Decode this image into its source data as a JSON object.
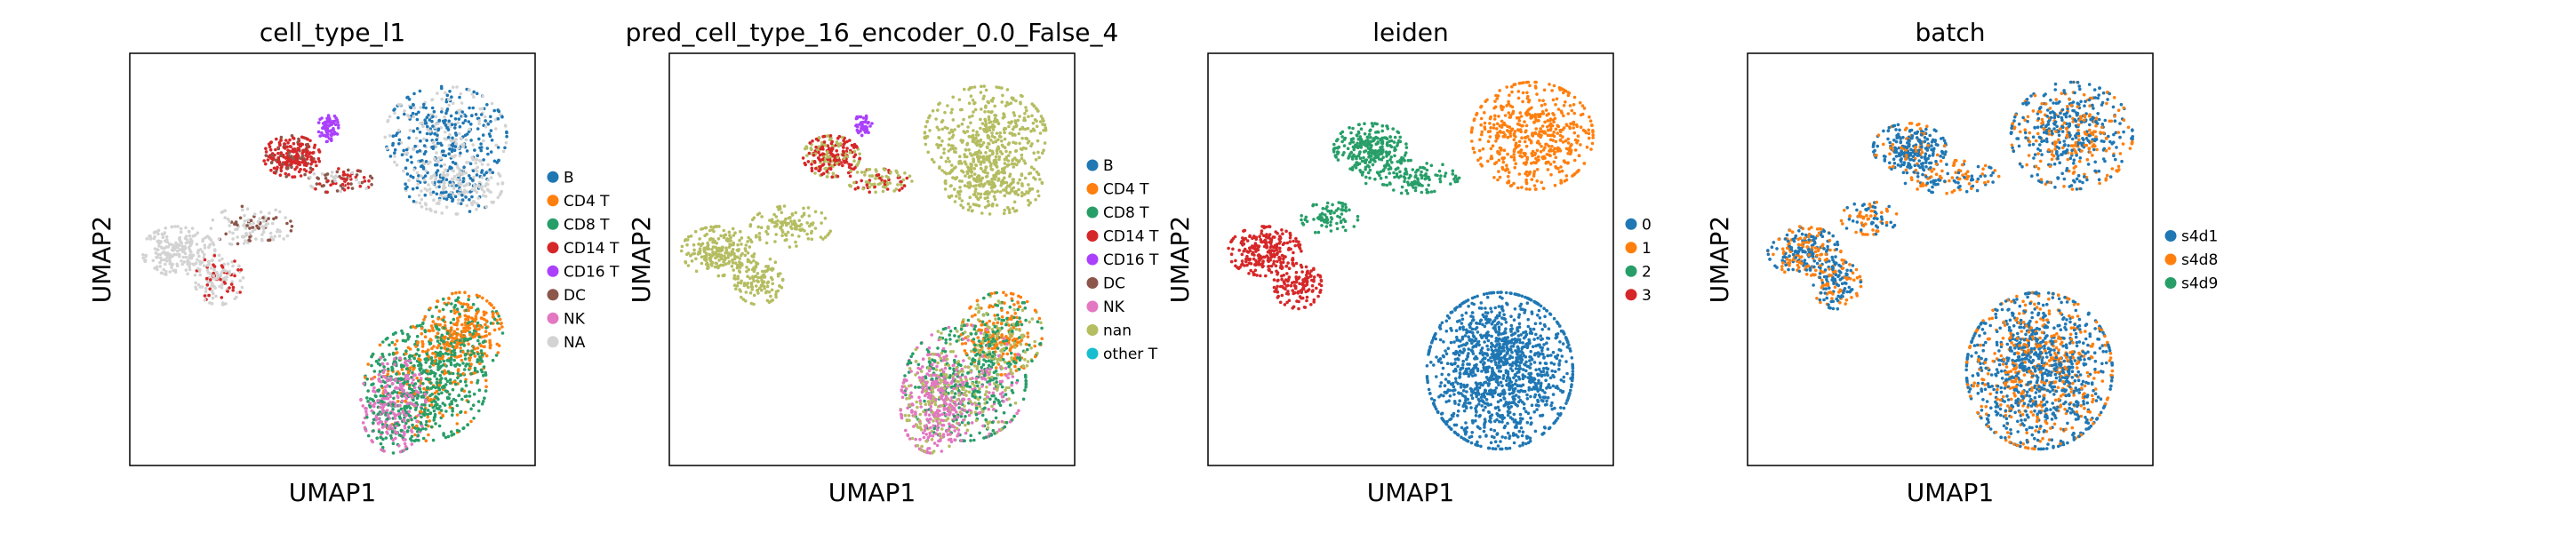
{
  "chart_data": [
    {
      "type": "scatter",
      "title": "cell_type_l1",
      "xlabel": "UMAP1",
      "ylabel": "UMAP2",
      "grid": false,
      "legend_placement": "right",
      "legend": [
        {
          "label": "B",
          "color": "#1f77b4"
        },
        {
          "label": "CD4 T",
          "color": "#ff7f0e"
        },
        {
          "label": "CD8 T",
          "color": "#279e68"
        },
        {
          "label": "CD14 T",
          "color": "#d62728"
        },
        {
          "label": "CD16 T",
          "color": "#aa40fc"
        },
        {
          "label": "DC",
          "color": "#8c564b"
        },
        {
          "label": "NK",
          "color": "#e377c2"
        },
        {
          "label": "NA",
          "color": "#d3d3d3"
        }
      ],
      "clusters": [
        {
          "cx": 0.78,
          "cy": 0.2,
          "rx": 0.15,
          "ry": 0.12,
          "colors": [
            "#1f77b4",
            "#1f77b4",
            "#d3d3d3"
          ],
          "n": 420
        },
        {
          "cx": 0.8,
          "cy": 0.32,
          "rx": 0.12,
          "ry": 0.07,
          "colors": [
            "#d3d3d3",
            "#d3d3d3",
            "#1f77b4"
          ],
          "n": 260
        },
        {
          "cx": 0.4,
          "cy": 0.25,
          "rx": 0.07,
          "ry": 0.05,
          "colors": [
            "#d62728",
            "#d62728",
            "#d62728",
            "#8c564b"
          ],
          "n": 230
        },
        {
          "cx": 0.49,
          "cy": 0.18,
          "rx": 0.025,
          "ry": 0.035,
          "colors": [
            "#aa40fc"
          ],
          "n": 70
        },
        {
          "cx": 0.52,
          "cy": 0.31,
          "rx": 0.08,
          "ry": 0.03,
          "colors": [
            "#d62728",
            "#8c564b",
            "#d3d3d3"
          ],
          "n": 90
        },
        {
          "cx": 0.3,
          "cy": 0.42,
          "rx": 0.1,
          "ry": 0.05,
          "colors": [
            "#d3d3d3",
            "#d3d3d3",
            "#8c564b"
          ],
          "n": 120
        },
        {
          "cx": 0.12,
          "cy": 0.48,
          "rx": 0.09,
          "ry": 0.06,
          "colors": [
            "#d3d3d3"
          ],
          "n": 220
        },
        {
          "cx": 0.22,
          "cy": 0.55,
          "rx": 0.06,
          "ry": 0.06,
          "colors": [
            "#d3d3d3",
            "#d3d3d3",
            "#d62728"
          ],
          "n": 130
        },
        {
          "cx": 0.82,
          "cy": 0.68,
          "rx": 0.1,
          "ry": 0.1,
          "colors": [
            "#ff7f0e",
            "#ff7f0e",
            "#279e68"
          ],
          "n": 380
        },
        {
          "cx": 0.73,
          "cy": 0.8,
          "rx": 0.15,
          "ry": 0.14,
          "colors": [
            "#279e68",
            "#279e68",
            "#279e68",
            "#ff7f0e"
          ],
          "n": 620
        },
        {
          "cx": 0.65,
          "cy": 0.85,
          "rx": 0.08,
          "ry": 0.12,
          "colors": [
            "#e377c2",
            "#e377c2",
            "#279e68"
          ],
          "n": 330
        }
      ]
    },
    {
      "type": "scatter",
      "title": "pred_cell_type_16_encoder_0.0_False_4",
      "xlabel": "UMAP1",
      "ylabel": "UMAP2",
      "grid": false,
      "legend_placement": "right",
      "legend": [
        {
          "label": "B",
          "color": "#1f77b4"
        },
        {
          "label": "CD4 T",
          "color": "#ff7f0e"
        },
        {
          "label": "CD8 T",
          "color": "#279e68"
        },
        {
          "label": "CD14 T",
          "color": "#d62728"
        },
        {
          "label": "CD16 T",
          "color": "#aa40fc"
        },
        {
          "label": "DC",
          "color": "#8c564b"
        },
        {
          "label": "NK",
          "color": "#e377c2"
        },
        {
          "label": "nan",
          "color": "#b5bd61"
        },
        {
          "label": "other T",
          "color": "#17becf"
        }
      ],
      "clusters": [
        {
          "cx": 0.78,
          "cy": 0.2,
          "rx": 0.15,
          "ry": 0.12,
          "colors": [
            "#b5bd61"
          ],
          "n": 420
        },
        {
          "cx": 0.8,
          "cy": 0.32,
          "rx": 0.12,
          "ry": 0.07,
          "colors": [
            "#b5bd61"
          ],
          "n": 260
        },
        {
          "cx": 0.4,
          "cy": 0.25,
          "rx": 0.07,
          "ry": 0.05,
          "colors": [
            "#d62728",
            "#d62728",
            "#b5bd61"
          ],
          "n": 230
        },
        {
          "cx": 0.48,
          "cy": 0.17,
          "rx": 0.02,
          "ry": 0.03,
          "colors": [
            "#aa40fc"
          ],
          "n": 50
        },
        {
          "cx": 0.52,
          "cy": 0.31,
          "rx": 0.08,
          "ry": 0.03,
          "colors": [
            "#b5bd61",
            "#d62728",
            "#b5bd61"
          ],
          "n": 90
        },
        {
          "cx": 0.3,
          "cy": 0.42,
          "rx": 0.1,
          "ry": 0.05,
          "colors": [
            "#b5bd61"
          ],
          "n": 120
        },
        {
          "cx": 0.12,
          "cy": 0.48,
          "rx": 0.09,
          "ry": 0.06,
          "colors": [
            "#b5bd61"
          ],
          "n": 220
        },
        {
          "cx": 0.22,
          "cy": 0.55,
          "rx": 0.06,
          "ry": 0.06,
          "colors": [
            "#b5bd61"
          ],
          "n": 130
        },
        {
          "cx": 0.82,
          "cy": 0.68,
          "rx": 0.1,
          "ry": 0.1,
          "colors": [
            "#ff7f0e",
            "#ff7f0e",
            "#b5bd61",
            "#279e68"
          ],
          "n": 380
        },
        {
          "cx": 0.73,
          "cy": 0.8,
          "rx": 0.15,
          "ry": 0.14,
          "colors": [
            "#279e68",
            "#b5bd61",
            "#279e68",
            "#e377c2"
          ],
          "n": 620
        },
        {
          "cx": 0.65,
          "cy": 0.85,
          "rx": 0.08,
          "ry": 0.12,
          "colors": [
            "#e377c2",
            "#e377c2",
            "#b5bd61"
          ],
          "n": 330
        }
      ]
    },
    {
      "type": "scatter",
      "title": "leiden",
      "xlabel": "UMAP1",
      "ylabel": "UMAP2",
      "grid": false,
      "legend_placement": "right",
      "legend": [
        {
          "label": "0",
          "color": "#1f77b4"
        },
        {
          "label": "1",
          "color": "#ff7f0e"
        },
        {
          "label": "2",
          "color": "#279e68"
        },
        {
          "label": "3",
          "color": "#d62728"
        }
      ],
      "clusters": [
        {
          "cx": 0.8,
          "cy": 0.2,
          "rx": 0.15,
          "ry": 0.13,
          "colors": [
            "#ff7f0e"
          ],
          "n": 520
        },
        {
          "cx": 0.4,
          "cy": 0.23,
          "rx": 0.09,
          "ry": 0.06,
          "colors": [
            "#279e68"
          ],
          "n": 260
        },
        {
          "cx": 0.5,
          "cy": 0.3,
          "rx": 0.12,
          "ry": 0.04,
          "colors": [
            "#279e68"
          ],
          "n": 120
        },
        {
          "cx": 0.3,
          "cy": 0.4,
          "rx": 0.07,
          "ry": 0.04,
          "colors": [
            "#279e68"
          ],
          "n": 80
        },
        {
          "cx": 0.14,
          "cy": 0.48,
          "rx": 0.09,
          "ry": 0.06,
          "colors": [
            "#d62728"
          ],
          "n": 240
        },
        {
          "cx": 0.22,
          "cy": 0.56,
          "rx": 0.06,
          "ry": 0.06,
          "colors": [
            "#d62728"
          ],
          "n": 140
        },
        {
          "cx": 0.72,
          "cy": 0.77,
          "rx": 0.18,
          "ry": 0.19,
          "colors": [
            "#1f77b4"
          ],
          "n": 1250
        }
      ]
    },
    {
      "type": "scatter",
      "title": "batch",
      "xlabel": "UMAP1",
      "ylabel": "UMAP2",
      "grid": false,
      "legend_placement": "right",
      "legend": [
        {
          "label": "s4d1",
          "color": "#1f77b4"
        },
        {
          "label": "s4d8",
          "color": "#ff7f0e"
        },
        {
          "label": "s4d9",
          "color": "#279e68"
        }
      ],
      "clusters": [
        {
          "cx": 0.8,
          "cy": 0.2,
          "rx": 0.15,
          "ry": 0.13,
          "colors": [
            "#1f77b4",
            "#1f77b4",
            "#ff7f0e"
          ],
          "n": 520
        },
        {
          "cx": 0.4,
          "cy": 0.23,
          "rx": 0.09,
          "ry": 0.06,
          "colors": [
            "#1f77b4",
            "#1f77b4",
            "#1f77b4",
            "#ff7f0e"
          ],
          "n": 260
        },
        {
          "cx": 0.5,
          "cy": 0.3,
          "rx": 0.12,
          "ry": 0.04,
          "colors": [
            "#1f77b4",
            "#ff7f0e"
          ],
          "n": 120
        },
        {
          "cx": 0.3,
          "cy": 0.4,
          "rx": 0.07,
          "ry": 0.04,
          "colors": [
            "#1f77b4",
            "#ff7f0e"
          ],
          "n": 80
        },
        {
          "cx": 0.14,
          "cy": 0.48,
          "rx": 0.09,
          "ry": 0.06,
          "colors": [
            "#1f77b4",
            "#ff7f0e"
          ],
          "n": 240
        },
        {
          "cx": 0.22,
          "cy": 0.56,
          "rx": 0.06,
          "ry": 0.06,
          "colors": [
            "#1f77b4",
            "#ff7f0e"
          ],
          "n": 140
        },
        {
          "cx": 0.72,
          "cy": 0.77,
          "rx": 0.18,
          "ry": 0.19,
          "colors": [
            "#ff7f0e",
            "#1f77b4",
            "#1f77b4"
          ],
          "n": 1250
        }
      ]
    }
  ]
}
